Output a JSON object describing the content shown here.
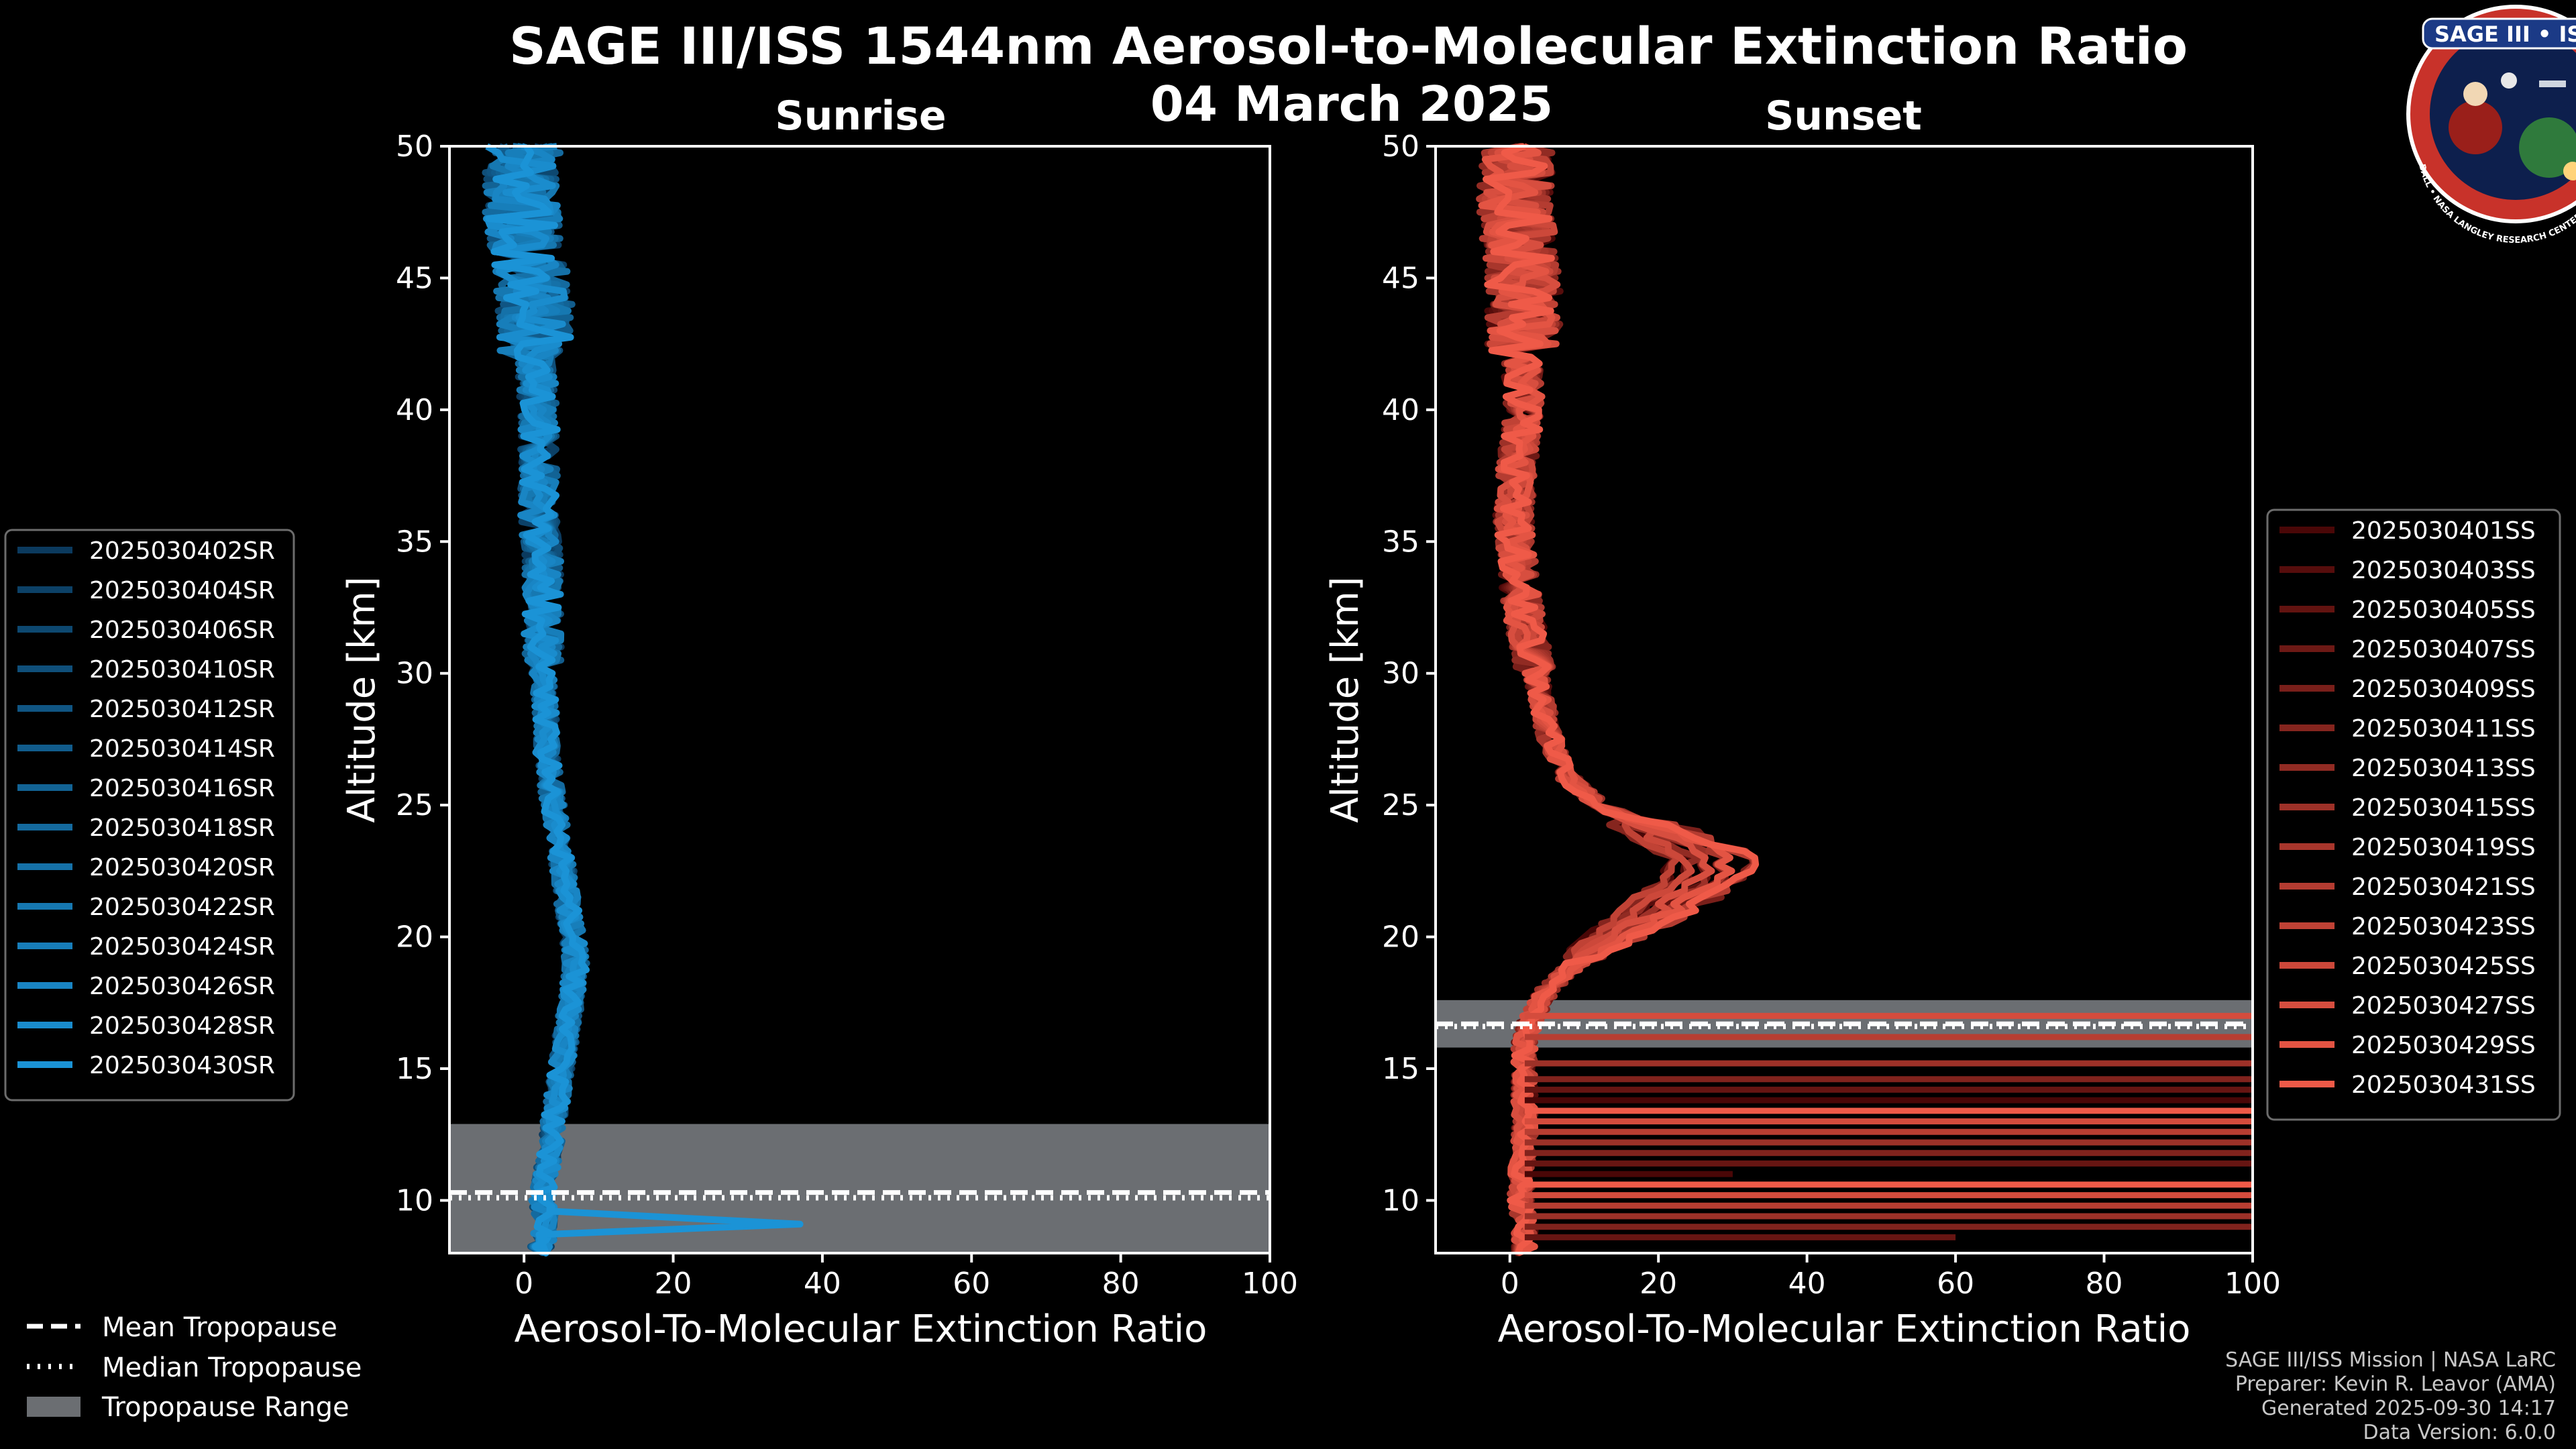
{
  "header": {
    "title": "SAGE III/ISS 1544nm Aerosol-to-Molecular Extinction Ratio",
    "date": "04 March 2025"
  },
  "logo": {
    "name": "SAGE III • ISS",
    "ring_text": "BALL • NASA LANGLEY RESEARCH CENTER • TAS • ESA"
  },
  "footer": {
    "line1": "SAGE III/ISS Mission | NASA LaRC",
    "line2": "Preparer: Kevin R. Leavor (AMA)",
    "line3": "Generated 2025-09-30 14:17",
    "line4": "Data Version: 6.0.0"
  },
  "tropo_legend": {
    "mean": "Mean Tropopause",
    "median": "Median Tropopause",
    "range": "Tropopause Range"
  },
  "colors": {
    "sunrise_dark": "#0b3a5e",
    "sunrise_light": "#1b93d6",
    "sunset_dark": "#4a0707",
    "sunset_light": "#ef5a48",
    "tropo_range": "#6b6e72"
  },
  "chart_data": [
    {
      "type": "line",
      "title": "Sunrise",
      "xlabel": "Aerosol-To-Molecular Extinction Ratio",
      "ylabel": "Altitude [km]",
      "xlim": [
        -10,
        100
      ],
      "ylim": [
        8,
        50
      ],
      "xticks": [
        0,
        20,
        40,
        60,
        80,
        100
      ],
      "yticks": [
        10,
        15,
        20,
        25,
        30,
        35,
        40,
        45,
        50
      ],
      "tropopause": {
        "mean": 10.3,
        "median": 10.1,
        "range": [
          8,
          12.9
        ]
      },
      "legend_placement": "left",
      "series_names": [
        "2025030402SR",
        "2025030404SR",
        "2025030406SR",
        "2025030410SR",
        "2025030412SR",
        "2025030414SR",
        "2025030416SR",
        "2025030418SR",
        "2025030420SR",
        "2025030422SR",
        "2025030424SR",
        "2025030426SR",
        "2025030428SR",
        "2025030430SR"
      ],
      "profile_alt": [
        8,
        9,
        10,
        11,
        12,
        13,
        14,
        15,
        16,
        17,
        18,
        19,
        20,
        21,
        22,
        23,
        24,
        25,
        26,
        27,
        28,
        30,
        32,
        34,
        36,
        38,
        40,
        42,
        44,
        46,
        48,
        50
      ],
      "profile_mean": [
        2,
        3,
        2.5,
        3,
        3.5,
        4,
        4.5,
        5,
        5.5,
        6,
        6.5,
        7,
        6.5,
        6,
        5.5,
        5,
        4.5,
        4,
        3.5,
        3,
        3,
        2.5,
        2.5,
        2.5,
        2,
        2,
        2,
        1.5,
        1.5,
        0.5,
        -0.5,
        0
      ],
      "spike": {
        "alt": 9.1,
        "value": 37
      }
    },
    {
      "type": "line",
      "title": "Sunset",
      "xlabel": "Aerosol-To-Molecular Extinction Ratio",
      "ylabel": "Altitude [km]",
      "xlim": [
        -10,
        100
      ],
      "ylim": [
        8,
        50
      ],
      "xticks": [
        0,
        20,
        40,
        60,
        80,
        100
      ],
      "yticks": [
        10,
        15,
        20,
        25,
        30,
        35,
        40,
        45,
        50
      ],
      "tropopause": {
        "mean": 16.7,
        "median": 16.6,
        "range": [
          15.8,
          17.6
        ]
      },
      "legend_placement": "right",
      "series_names": [
        "2025030401SS",
        "2025030403SS",
        "2025030405SS",
        "2025030407SS",
        "2025030409SS",
        "2025030411SS",
        "2025030413SS",
        "2025030415SS",
        "2025030419SS",
        "2025030421SS",
        "2025030423SS",
        "2025030425SS",
        "2025030427SS",
        "2025030429SS",
        "2025030431SS"
      ],
      "profile_alt": [
        8,
        9,
        10,
        11,
        12,
        13,
        14,
        15,
        16,
        17,
        18,
        19,
        20,
        21,
        22,
        23,
        24,
        25,
        26,
        27,
        28,
        30,
        32,
        34,
        36,
        38,
        40,
        42,
        44,
        46,
        48,
        50
      ],
      "profile_mean": [
        2,
        2,
        1.5,
        1.5,
        2,
        2,
        2,
        2,
        2,
        3,
        5,
        9,
        14,
        20,
        25,
        27,
        20,
        12,
        8,
        6,
        5,
        3.5,
        2,
        1,
        0.5,
        1,
        2,
        1.5,
        2,
        1.5,
        0.5,
        1
      ],
      "streak_alts": [
        8.2,
        8.6,
        9.0,
        9.4,
        9.8,
        10.2,
        10.6,
        11.0,
        11.4,
        11.8,
        12.2,
        12.6,
        13.0,
        13.4,
        13.8,
        14.2,
        14.6,
        15.2,
        16.2,
        17.0
      ],
      "streak_start_values": [
        -10,
        60,
        100,
        100,
        100,
        100,
        100,
        30,
        100,
        100,
        100,
        100,
        100,
        100,
        100,
        100,
        100,
        100,
        100,
        100
      ]
    }
  ]
}
